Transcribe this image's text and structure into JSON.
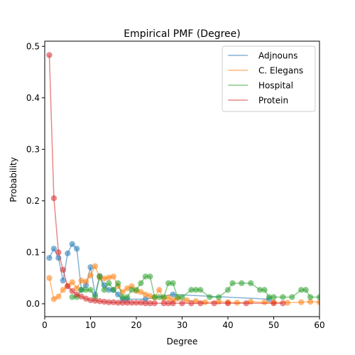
{
  "chart_data": {
    "type": "line",
    "title": "Empirical PMF (Degree)",
    "xlabel": "Degree",
    "ylabel": "Probability",
    "xlim": [
      0,
      60
    ],
    "ylim": [
      -0.025,
      0.51
    ],
    "xticks": [
      0,
      10,
      20,
      30,
      40,
      50,
      60
    ],
    "yticks": [
      0.0,
      0.1,
      0.2,
      0.3,
      0.4,
      0.5
    ],
    "xtick_labels": [
      "0",
      "10",
      "20",
      "30",
      "40",
      "50",
      "60"
    ],
    "ytick_labels": [
      "0.0",
      "0.1",
      "0.2",
      "0.3",
      "0.4",
      "0.5"
    ],
    "grid": false,
    "legend_position": "top-right",
    "series": [
      {
        "name": "Adjnouns",
        "color": "#1f77b4",
        "x": [
          1,
          2,
          3,
          4,
          5,
          6,
          7,
          8,
          9,
          10,
          11,
          12,
          13,
          14,
          15,
          16,
          17,
          18,
          22,
          28,
          49
        ],
        "y": [
          0.089,
          0.107,
          0.089,
          0.045,
          0.098,
          0.116,
          0.107,
          0.027,
          0.036,
          0.071,
          0.018,
          0.054,
          0.036,
          0.027,
          0.027,
          0.018,
          0.009,
          0.009,
          0.009,
          0.018,
          0.009
        ]
      },
      {
        "name": "C. Elegans",
        "color": "#ff7f0e",
        "x": [
          1,
          2,
          3,
          4,
          5,
          6,
          7,
          8,
          9,
          10,
          11,
          12,
          13,
          14,
          15,
          16,
          17,
          18,
          19,
          20,
          21,
          22,
          23,
          24,
          25,
          26,
          27,
          28,
          29,
          31,
          33,
          35,
          38,
          40,
          42,
          45,
          48,
          50,
          53,
          56,
          58,
          60
        ],
        "y": [
          0.05,
          0.009,
          0.014,
          0.027,
          0.035,
          0.042,
          0.03,
          0.045,
          0.043,
          0.055,
          0.073,
          0.051,
          0.049,
          0.051,
          0.053,
          0.034,
          0.023,
          0.03,
          0.034,
          0.025,
          0.023,
          0.018,
          0.015,
          0.012,
          0.027,
          0.01,
          0.012,
          0.007,
          0.01,
          0.007,
          0.005,
          0.003,
          0.004,
          0.003,
          0.002,
          0.004,
          0.003,
          0.003,
          0.002,
          0.003,
          0.004,
          0.003
        ]
      },
      {
        "name": "Hospital",
        "color": "#2ca02c",
        "x": [
          6,
          7,
          8,
          9,
          10,
          11,
          12,
          13,
          14,
          15,
          16,
          17,
          18,
          19,
          20,
          21,
          22,
          23,
          24,
          25,
          26,
          27,
          28,
          29,
          30,
          32,
          33,
          34,
          36,
          38,
          40,
          41,
          43,
          45,
          47,
          48,
          49,
          50,
          52,
          54,
          56,
          57,
          58,
          60
        ],
        "y": [
          0.013,
          0.013,
          0.027,
          0.027,
          0.027,
          0.013,
          0.053,
          0.027,
          0.04,
          0.027,
          0.04,
          0.013,
          0.013,
          0.027,
          0.027,
          0.04,
          0.053,
          0.053,
          0.013,
          0.013,
          0.013,
          0.04,
          0.04,
          0.013,
          0.013,
          0.027,
          0.027,
          0.027,
          0.013,
          0.013,
          0.027,
          0.04,
          0.04,
          0.04,
          0.027,
          0.027,
          0.013,
          0.013,
          0.013,
          0.013,
          0.027,
          0.027,
          0.013,
          0.013
        ]
      },
      {
        "name": "Protein",
        "color": "#d62728",
        "x": [
          1,
          2,
          3,
          4,
          5,
          6,
          7,
          8,
          9,
          10,
          11,
          12,
          13,
          14,
          15,
          16,
          17,
          18,
          19,
          20,
          21,
          22,
          23,
          24,
          26,
          27,
          28,
          30,
          32,
          34,
          37,
          40,
          44,
          50,
          52
        ],
        "y": [
          0.483,
          0.205,
          0.1,
          0.066,
          0.034,
          0.025,
          0.018,
          0.014,
          0.01,
          0.007,
          0.006,
          0.005,
          0.004,
          0.003,
          0.003,
          0.002,
          0.002,
          0.002,
          0.002,
          0.002,
          0.002,
          0.001,
          0.001,
          0.001,
          0.001,
          0.001,
          0.001,
          0.001,
          0.001,
          0.001,
          0.001,
          0.001,
          0.001,
          0.001,
          0.001
        ]
      }
    ]
  }
}
